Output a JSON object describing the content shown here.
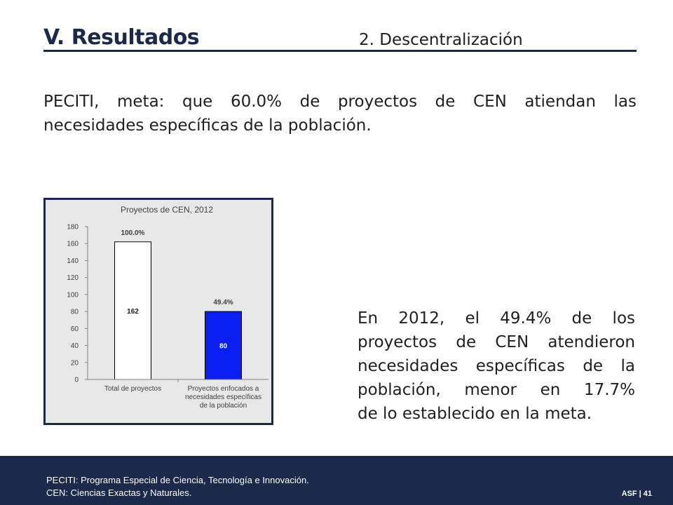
{
  "header": {
    "title": "V. Resultados",
    "subtitle": "2. Descentralización"
  },
  "intro": {
    "line1": "PECITI, meta: que 60.0% de proyectos de CEN atiendan las",
    "line2": "necesidades específicas de la población."
  },
  "chart_data": {
    "type": "bar",
    "title": "Proyectos de CEN, 2012",
    "categories": [
      [
        "Total de proyectos"
      ],
      [
        "Proyectos enfocados a",
        "necesidades específicas",
        "de la población"
      ]
    ],
    "values": [
      162,
      80
    ],
    "value_labels": [
      "162",
      "80"
    ],
    "percent_labels": [
      "100.0%",
      "49.4%"
    ],
    "bar_colors": [
      "#ffffff",
      "#0a1ef2"
    ],
    "value_label_colors": [
      "#1f1f1f",
      "#ffffff"
    ],
    "ylim": [
      0,
      180
    ],
    "yticks": [
      0,
      20,
      40,
      60,
      80,
      100,
      120,
      140,
      160,
      180
    ],
    "grid": false,
    "xlabel": "",
    "ylabel": ""
  },
  "explanation": {
    "lines": [
      "En 2012, el 49.4% de los",
      "proyectos de CEN atendieron",
      "necesidades específicas de la",
      "población, menor en 17.7%",
      "de lo establecido en la meta."
    ]
  },
  "footer": {
    "note1": "PECITI: Programa Especial de Ciencia, Tecnología e Innovación.",
    "note2": "CEN: Ciencias Exactas y Naturales.",
    "page": "ASF | 41"
  }
}
